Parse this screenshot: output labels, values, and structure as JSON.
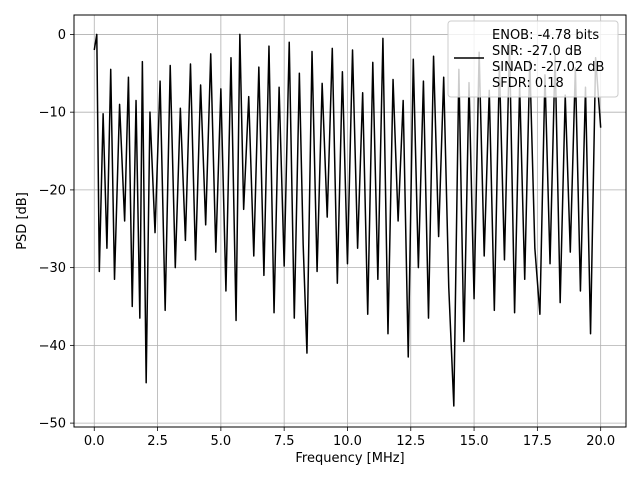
{
  "chart_data": {
    "type": "line",
    "xlabel": "Frequency [MHz]",
    "ylabel": "PSD [dB]",
    "xlim": [
      -0.8,
      21.0
    ],
    "ylim": [
      -50.5,
      2.5
    ],
    "xticks": [
      0.0,
      2.5,
      5.0,
      7.5,
      10.0,
      12.5,
      15.0,
      17.5,
      20.0
    ],
    "xtick_labels": [
      "0.0",
      "2.5",
      "5.0",
      "7.5",
      "10.0",
      "12.5",
      "15.0",
      "17.5",
      "20.0"
    ],
    "yticks": [
      0,
      -10,
      -20,
      -30,
      -40,
      -50
    ],
    "ytick_labels": [
      "0",
      "−10",
      "−20",
      "−30",
      "−40",
      "−50"
    ],
    "grid": true,
    "legend_position": "top-right",
    "series": [
      {
        "name": "ENOB: -4.78 bits\nSNR: -27.0 dB\nSINAD: -27.02 dB\nSFDR: 0.18",
        "legend_lines": [
          "ENOB: -4.78 bits",
          "SNR: -27.0 dB",
          "SINAD: -27.02 dB",
          "SFDR: 0.18"
        ],
        "color": "#000000",
        "x": [
          0.0,
          0.1,
          0.2,
          0.35,
          0.5,
          0.65,
          0.8,
          1.0,
          1.2,
          1.35,
          1.5,
          1.65,
          1.8,
          1.9,
          2.05,
          2.2,
          2.4,
          2.6,
          2.8,
          3.0,
          3.2,
          3.4,
          3.6,
          3.8,
          4.0,
          4.2,
          4.4,
          4.6,
          4.8,
          5.0,
          5.2,
          5.4,
          5.6,
          5.75,
          5.9,
          6.1,
          6.3,
          6.5,
          6.7,
          6.9,
          7.1,
          7.3,
          7.5,
          7.7,
          7.9,
          8.1,
          8.25,
          8.4,
          8.6,
          8.8,
          9.0,
          9.2,
          9.4,
          9.6,
          9.8,
          10.0,
          10.2,
          10.4,
          10.6,
          10.8,
          11.0,
          11.2,
          11.4,
          11.6,
          11.8,
          12.0,
          12.2,
          12.4,
          12.6,
          12.8,
          13.0,
          13.2,
          13.4,
          13.6,
          13.8,
          14.0,
          14.2,
          14.4,
          14.6,
          14.8,
          15.0,
          15.2,
          15.4,
          15.6,
          15.8,
          16.0,
          16.2,
          16.4,
          16.6,
          16.8,
          17.0,
          17.2,
          17.4,
          17.6,
          17.8,
          18.0,
          18.2,
          18.4,
          18.6,
          18.8,
          19.0,
          19.2,
          19.4,
          19.6,
          19.8,
          20.0
        ],
        "y": [
          -2.0,
          0.0,
          -30.5,
          -10.2,
          -27.5,
          -4.5,
          -31.5,
          -9.0,
          -24.0,
          -5.5,
          -35.0,
          -8.5,
          -36.5,
          -3.5,
          -44.8,
          -10.0,
          -25.5,
          -6.0,
          -35.5,
          -4.0,
          -30.0,
          -9.5,
          -26.5,
          -3.8,
          -29.0,
          -6.5,
          -24.5,
          -2.5,
          -28.0,
          -7.0,
          -33.0,
          -3.0,
          -36.8,
          0.0,
          -22.5,
          -8.0,
          -28.5,
          -4.2,
          -31.0,
          -1.5,
          -35.8,
          -6.8,
          -29.8,
          -1.0,
          -36.5,
          -5.0,
          -27.0,
          -41.0,
          -2.2,
          -30.5,
          -6.3,
          -23.5,
          -1.8,
          -32.0,
          -4.8,
          -29.5,
          -2.0,
          -27.5,
          -7.5,
          -36.0,
          -3.6,
          -31.5,
          -0.5,
          -38.5,
          -5.8,
          -24.0,
          -8.5,
          -41.5,
          -3.2,
          -30.0,
          -6.0,
          -36.5,
          -2.8,
          -26.0,
          -5.5,
          -32.5,
          -47.8,
          -4.5,
          -39.5,
          -6.2,
          -34.0,
          -2.3,
          -28.5,
          -7.2,
          -35.5,
          -4.0,
          -29.0,
          -1.2,
          -35.8,
          -6.5,
          -31.5,
          -3.4,
          -27.5,
          -36.0,
          -5.2,
          -29.5,
          -2.6,
          -34.5,
          -7.8,
          -28.0,
          -4.3,
          -33.0,
          -6.8,
          -38.5,
          -3.0,
          -12.0
        ]
      }
    ]
  }
}
